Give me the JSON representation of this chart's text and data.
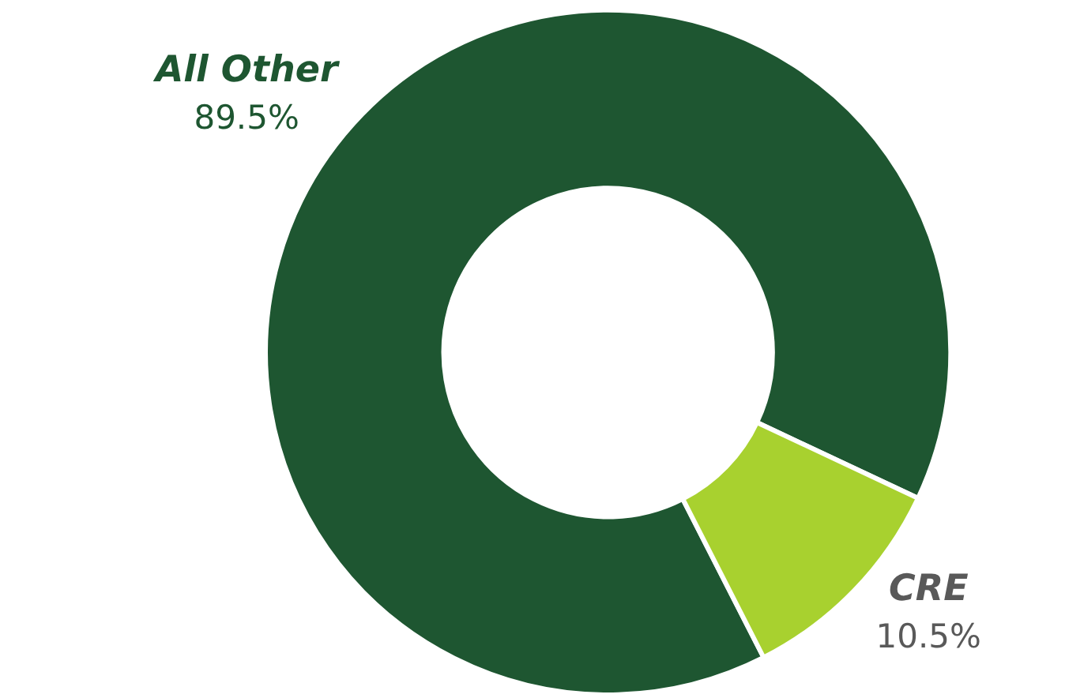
{
  "chart_data": {
    "type": "donut",
    "categories": [
      "All Other",
      "CRE"
    ],
    "values": [
      89.5,
      10.5
    ],
    "value_labels": [
      "89.5%",
      "10.5%"
    ],
    "colors": [
      "#1e5631",
      "#a8d12f"
    ]
  }
}
